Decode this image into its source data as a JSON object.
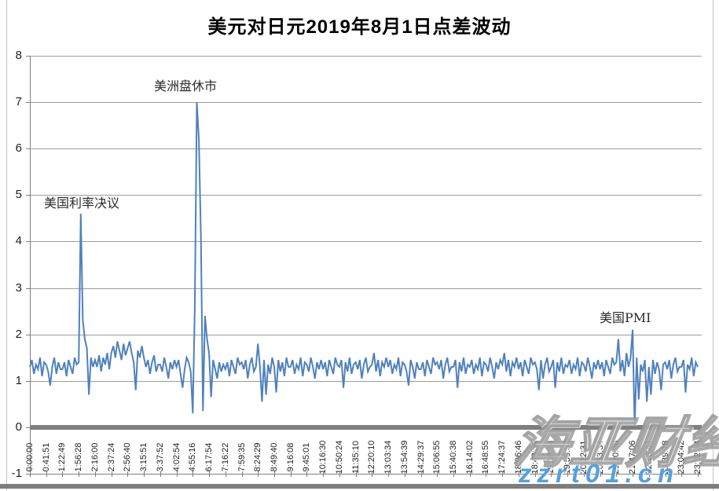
{
  "title": "美元对日元2019年8月1日点差波动",
  "colors": {
    "series": "#4F81BD",
    "gridline": "#9c9c9c",
    "axis": "#7f7f7f",
    "zero_bar": "#7f7f7f",
    "watermark_url_blue": "#57a0dd"
  },
  "watermark": {
    "brand": "海亚财经",
    "url": "zzrt01.cn"
  },
  "annotations": {
    "fed": "美国利率决议",
    "market_close": "美洲盘休市",
    "pmi": "美国PMI"
  },
  "chart_data": {
    "type": "line",
    "title": "美元对日元2019年8月1日点差波动",
    "xlabel": "",
    "ylabel": "",
    "ylim": [
      -1,
      8
    ],
    "y_ticks": [
      8,
      7,
      6,
      5,
      4,
      3,
      2,
      1,
      0,
      -1
    ],
    "grid": "horizontal",
    "legend": "none",
    "x_tick_labels": [
      "0:00:00",
      "0:41:51",
      "1:22:49",
      "1:56:28",
      "2:16:00",
      "2:37:24",
      "2:56:40",
      "3:15:51",
      "3:37:52",
      "4:02:54",
      "4:55:16",
      "6:17:54",
      "7:16:22",
      "7:59:35",
      "8:24:29",
      "8:49:40",
      "9:16:08",
      "9:45:01",
      "10:16:30",
      "10:50:24",
      "11:35:10",
      "12:20:10",
      "13:03:34",
      "13:54:39",
      "14:29:37",
      "15:06:55",
      "15:40:38",
      "16:14:02",
      "16:48:55",
      "17:24:37",
      "18:06:46",
      "18:43:51",
      "19:18:54",
      "19:50:53",
      "20:22:31",
      "20:53:34",
      "21:20:46",
      "21:47:06",
      "22:13:44",
      "22:39:18",
      "23:04:42",
      "23:32:54"
    ],
    "annotations": [
      {
        "text": "美国利率决议",
        "near_x_label": "1:56:28",
        "peak_value": 4.6
      },
      {
        "text": "美洲盘休市",
        "near_x_label": "4:55:16",
        "peak_value": 7.0
      },
      {
        "text": "美国PMI",
        "near_x_label": "21:47:06",
        "peak_value": 2.1,
        "dip_value": 0.0
      }
    ],
    "baseline_band": [
      1.0,
      1.55
    ],
    "series": [
      {
        "name": "点差",
        "values": [
          1.3,
          1.45,
          1.15,
          1.35,
          1.25,
          1.5,
          1.1,
          1.4,
          1.35,
          1.2,
          0.9,
          1.3,
          1.5,
          1.15,
          1.4,
          1.25,
          1.25,
          1.4,
          1.1,
          1.45,
          1.3,
          1.15,
          1.5,
          1.35,
          1.4,
          4.6,
          2.3,
          1.9,
          1.7,
          0.7,
          1.5,
          1.3,
          1.45,
          1.3,
          1.55,
          1.2,
          1.5,
          1.35,
          1.6,
          1.25,
          1.6,
          1.75,
          1.5,
          1.85,
          1.65,
          1.45,
          1.8,
          1.55,
          1.7,
          1.85,
          1.6,
          1.4,
          0.8,
          1.65,
          1.5,
          1.75,
          1.5,
          1.3,
          1.45,
          1.15,
          1.4,
          1.55,
          1.2,
          1.35,
          1.35,
          1.2,
          1.5,
          1.3,
          1.05,
          1.4,
          1.25,
          1.45,
          1.3,
          1.45,
          1.15,
          0.85,
          1.25,
          1.5,
          1.4,
          1.2,
          0.3,
          2.6,
          7.0,
          6.2,
          4.1,
          0.35,
          2.4,
          1.9,
          1.6,
          0.65,
          1.45,
          1.25,
          1.05,
          1.4,
          1.2,
          1.35,
          1.25,
          1.4,
          1.1,
          1.45,
          1.3,
          1.15,
          1.5,
          1.35,
          1.4,
          1.25,
          1.45,
          1.05,
          1.35,
          1.5,
          1.2,
          1.3,
          1.8,
          1.3,
          0.55,
          1.45,
          0.7,
          1.35,
          1.15,
          1.5,
          1.3,
          0.75,
          1.45,
          1.2,
          1.4,
          1.1,
          1.5,
          1.3,
          1.3,
          1.45,
          1.15,
          1.35,
          1.25,
          1.5,
          1.1,
          1.4,
          1.35,
          1.2,
          1.5,
          1.3,
          1.05,
          1.4,
          1.25,
          1.45,
          1.25,
          1.4,
          1.1,
          1.45,
          1.3,
          1.15,
          1.5,
          1.35,
          1.3,
          1.45,
          0.85,
          1.4,
          1.2,
          1.5,
          1.15,
          1.35,
          1.4,
          1.25,
          1.45,
          1.05,
          1.35,
          1.5,
          1.2,
          1.3,
          1.35,
          1.6,
          1.2,
          1.45,
          1.1,
          1.4,
          1.3,
          1.5,
          1.3,
          1.45,
          1.15,
          1.35,
          1.25,
          1.5,
          1.1,
          1.4,
          1.35,
          1.2,
          0.9,
          1.45,
          1.3,
          1.05,
          1.4,
          1.25,
          1.25,
          1.4,
          1.1,
          1.45,
          1.3,
          1.15,
          1.5,
          1.35,
          1.4,
          1.25,
          1.45,
          1.05,
          1.35,
          1.5,
          1.2,
          1.3,
          1.3,
          1.45,
          0.85,
          1.4,
          1.2,
          1.5,
          1.15,
          1.35,
          1.3,
          1.45,
          1.15,
          1.35,
          1.25,
          1.5,
          1.1,
          1.4,
          1.35,
          1.2,
          1.5,
          1.3,
          1.05,
          1.4,
          1.25,
          1.45,
          1.35,
          1.6,
          1.2,
          1.45,
          1.1,
          1.4,
          1.3,
          1.5,
          1.25,
          1.4,
          1.1,
          1.45,
          1.3,
          1.15,
          1.5,
          1.35,
          1.4,
          1.25,
          0.8,
          1.45,
          1.05,
          1.35,
          1.5,
          1.2,
          1.3,
          1.45,
          0.85,
          1.4,
          1.2,
          1.5,
          1.15,
          1.35,
          1.3,
          1.45,
          1.15,
          1.35,
          1.25,
          1.5,
          1.1,
          1.4,
          1.35,
          1.2,
          1.5,
          1.3,
          1.05,
          1.4,
          1.25,
          1.45,
          1.25,
          1.4,
          1.1,
          1.45,
          1.3,
          1.15,
          1.5,
          1.35,
          1.4,
          1.9,
          1.2,
          1.45,
          1.1,
          1.6,
          1.3,
          1.5,
          2.1,
          0.0,
          1.5,
          0.6,
          1.35,
          1.2,
          1.45,
          0.55,
          1.3,
          0.7,
          1.45,
          1.15,
          1.4,
          1.25,
          0.8,
          1.35,
          1.4,
          1.25,
          1.45,
          1.05,
          1.35,
          1.5,
          1.2,
          1.3,
          1.3,
          1.45,
          0.75,
          1.35,
          1.25,
          1.5,
          1.1,
          1.4,
          1.3
        ]
      }
    ]
  }
}
